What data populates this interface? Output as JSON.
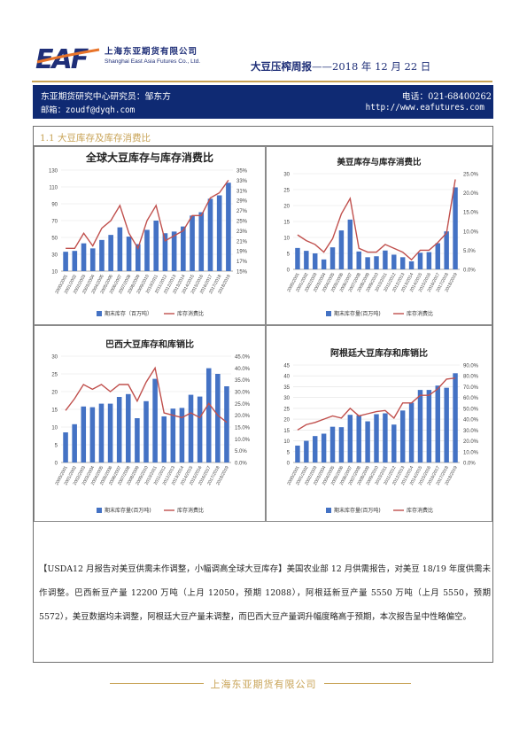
{
  "header": {
    "company_cn": "上海东亚期货有限公司",
    "company_en": "Shanghai East Asia Futures Co., Ltd.",
    "report_title": "大豆压榨周报",
    "report_dash": "——",
    "report_date": "2018 年 12 月 22 日"
  },
  "contact": {
    "researcher": "东亚期货研究中心研究员：邹东方",
    "email": "邮箱：zoudf@dyqh.com",
    "phone": "电话：021-68400262",
    "website": "http://www.eafutures.com"
  },
  "section": {
    "title": "1.1 大豆库存及库存消费比"
  },
  "body": {
    "paragraph": "【USDA12 月报告对美豆供需未作调整，小幅调高全球大豆库存】美国农业部 12 月供需报告，对美豆 18/19 年度供需未作调整。巴西新豆产量 12200 万吨（上月 12050，预期 12088），阿根廷新豆产量 5550 万吨（上月 5550，预期 5572），美豆数据均未调整，阿根廷大豆产量未调整，而巴西大豆产量调升幅度略高于预期，本次报告呈中性略偏空。"
  },
  "footer": {
    "company": "上海东亚期货有限公司"
  },
  "colors": {
    "navy": "#0f2a73",
    "gold": "#c8a356",
    "bar": "#4472c4",
    "line": "#c0504d"
  },
  "chart_data": [
    {
      "type": "bar",
      "title": "全球大豆库存与库存消费比",
      "categories": [
        "2000/2001",
        "2001/2002",
        "2002/2003",
        "2003/2004",
        "2004/2005",
        "2005/2006",
        "2006/2007",
        "2007/2008",
        "2008/2009",
        "2009/2010",
        "2010/2011",
        "2011/2012",
        "2012/2013",
        "2013/2014",
        "2014/2015",
        "2015/2016",
        "2016/2017",
        "2017/2018",
        "2018/2019"
      ],
      "series": [
        {
          "name": "期末库存（百万吨）",
          "type": "bar",
          "axis": "left",
          "values": [
            33,
            34,
            43,
            37,
            47,
            53,
            62,
            51,
            42,
            59,
            70,
            55,
            57,
            63,
            76,
            80,
            96,
            100,
            115
          ]
        },
        {
          "name": "库存消费比",
          "type": "line",
          "axis": "right",
          "values": [
            19.5,
            19.5,
            22.5,
            20,
            23.5,
            25,
            28,
            22.5,
            19.5,
            25,
            28,
            21,
            22,
            23,
            26,
            26,
            29.5,
            30.5,
            33
          ]
        }
      ],
      "ylim_left": [
        10,
        130
      ],
      "yticks_left": [
        "10",
        "30",
        "50",
        "70",
        "90",
        "110",
        "130"
      ],
      "ylim_right": [
        15,
        35
      ],
      "yticks_right": [
        "15%",
        "17%",
        "19%",
        "21%",
        "23%",
        "25%",
        "27%",
        "29%",
        "31%",
        "33%",
        "35%"
      ],
      "legend": "bottom"
    },
    {
      "type": "bar",
      "title": "美豆库存与库存消费比",
      "categories": [
        "2000/2001",
        "2001/2002",
        "2002/2003",
        "2003/2004",
        "2004/2005",
        "2005/2006",
        "2006/2007",
        "2007/2008",
        "2008/2009",
        "2009/2010",
        "2010/2011",
        "2011/2012",
        "2012/2013",
        "2013/2014",
        "2014/2015",
        "2015/2016",
        "2016/2017",
        "2017/2018",
        "2018/2019"
      ],
      "series": [
        {
          "name": "期末库存量(百万吨)",
          "type": "bar",
          "axis": "left",
          "values": [
            6.7,
            5.8,
            5.0,
            3.1,
            6.9,
            12.2,
            15.6,
            5.6,
            3.8,
            4.1,
            5.9,
            4.6,
            3.8,
            2.5,
            5.2,
            5.4,
            8.2,
            11.9,
            25.7
          ]
        },
        {
          "name": "库存消费比",
          "type": "line",
          "axis": "right",
          "values": [
            9.0,
            7.5,
            6.5,
            4.5,
            8.0,
            14.5,
            18.5,
            5.5,
            4.5,
            4.5,
            6.5,
            5.5,
            4.5,
            2.5,
            5.0,
            5.0,
            7.0,
            9.5,
            23.5
          ]
        }
      ],
      "ylim_left": [
        0,
        30
      ],
      "yticks_left": [
        "0",
        "5",
        "10",
        "15",
        "20",
        "25",
        "30"
      ],
      "ylim_right": [
        0,
        25
      ],
      "yticks_right": [
        "0.0%",
        "5.0%",
        "10.0%",
        "15.0%",
        "20.0%",
        "25.0%"
      ],
      "legend": "bottom"
    },
    {
      "type": "bar",
      "title": "巴西大豆库存和库销比",
      "categories": [
        "2000/2001",
        "2001/2002",
        "2002/2003",
        "2003/2004",
        "2004/2005",
        "2005/2006",
        "2006/2007",
        "2007/2008",
        "2008/2009",
        "2009/2010",
        "2010/2011",
        "2011/2012",
        "2012/2013",
        "2013/2014",
        "2014/2015",
        "2015/2016",
        "2016/2017",
        "2017/2018",
        "2018/2019"
      ],
      "series": [
        {
          "name": "期末库存量(百万吨)",
          "type": "bar",
          "axis": "left",
          "values": [
            8.5,
            10.8,
            15.8,
            15.6,
            16.6,
            16.6,
            18.5,
            19.3,
            12.5,
            17.3,
            23.6,
            13.0,
            15.2,
            15.4,
            19.1,
            18.6,
            26.6,
            25.0,
            21.5
          ]
        },
        {
          "name": "库存消费比",
          "type": "line",
          "axis": "right",
          "values": [
            22,
            27,
            33,
            31,
            33,
            30,
            33,
            33,
            26,
            34,
            40,
            21,
            20,
            19,
            21,
            19,
            25,
            20,
            17
          ]
        }
      ],
      "ylim_left": [
        0,
        30
      ],
      "yticks_left": [
        "0",
        "5",
        "10",
        "15",
        "20",
        "25",
        "30"
      ],
      "ylim_right": [
        0,
        45
      ],
      "yticks_right": [
        "0.0%",
        "5.0%",
        "10.0%",
        "15.0%",
        "20.0%",
        "25.0%",
        "30.0%",
        "35.0%",
        "40.0%",
        "45.0%"
      ],
      "legend": "bottom"
    },
    {
      "type": "bar",
      "title": "阿根廷大豆库存和库销比",
      "categories": [
        "2000/2001",
        "2001/2002",
        "2002/2003",
        "2003/2004",
        "2004/2005",
        "2005/2006",
        "2006/2007",
        "2007/2008",
        "2008/2009",
        "2009/2010",
        "2010/2011",
        "2011/2012",
        "2012/2013",
        "2013/2014",
        "2014/2015",
        "2015/2016",
        "2016/2017",
        "2017/2018",
        "2018/2019"
      ],
      "series": [
        {
          "name": "期末库存量(百万吨)",
          "type": "bar",
          "axis": "left",
          "values": [
            7.8,
            10.0,
            12.2,
            13.3,
            16.5,
            16.3,
            22.0,
            21.8,
            19.0,
            22.3,
            22.7,
            17.5,
            24.0,
            27.6,
            33.5,
            33.5,
            35.5,
            34.5,
            41.2
          ]
        },
        {
          "name": "库存消费比",
          "type": "line",
          "axis": "right",
          "values": [
            30,
            35,
            37,
            40,
            43,
            41,
            50,
            43,
            45,
            47,
            48,
            41,
            55,
            55,
            62,
            62,
            68,
            77,
            78
          ]
        }
      ],
      "ylim_left": [
        0,
        45
      ],
      "yticks_left": [
        "0",
        "5",
        "10",
        "15",
        "20",
        "25",
        "30",
        "35",
        "40",
        "45"
      ],
      "ylim_right": [
        0,
        90
      ],
      "yticks_right": [
        "0.0%",
        "10.0%",
        "20.0%",
        "30.0%",
        "40.0%",
        "50.0%",
        "60.0%",
        "70.0%",
        "80.0%",
        "90.0%"
      ],
      "legend": "bottom"
    }
  ]
}
